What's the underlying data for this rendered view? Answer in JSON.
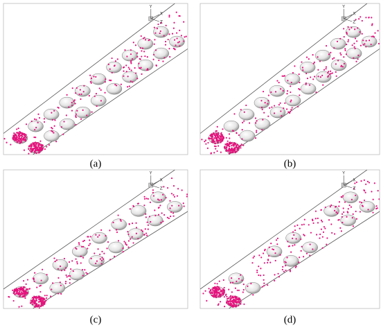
{
  "panels": [
    {
      "label": "(a)",
      "axes": [
        "Y",
        "X",
        "Z"
      ]
    },
    {
      "label": "(b)",
      "axes": [
        "Y",
        "X",
        "Z"
      ]
    },
    {
      "label": "(c)",
      "axes": [
        "Y",
        "X",
        "Z"
      ]
    },
    {
      "label": "(d)",
      "axes": [
        "Y",
        "X",
        "Z"
      ]
    }
  ]
}
